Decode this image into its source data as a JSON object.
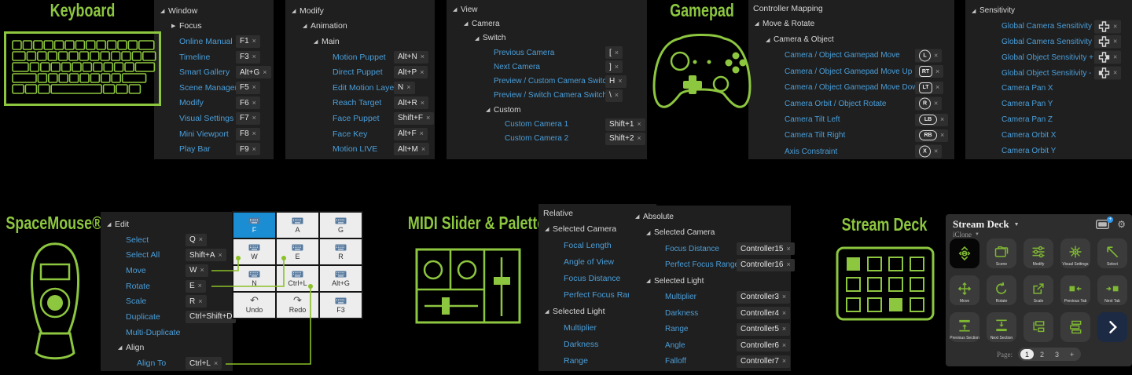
{
  "colors": {
    "green": "#8dc63f",
    "blue": "#4a9ed9",
    "key_active": "#1b8ed3",
    "deck_icon_green": "#7fb832",
    "connector": "#8bc027"
  },
  "titles": {
    "keyboard": "Keyboard",
    "gamepad": "Gamepad",
    "spacemouse": "SpaceMouse®",
    "midi": "MIDI Slider & Palette",
    "streamdeck": "Stream Deck"
  },
  "trees": {
    "window": {
      "rows": [
        {
          "t": "group",
          "label": "Window",
          "indent": 0,
          "open": true
        },
        {
          "t": "group",
          "label": "Focus",
          "indent": 1,
          "open": false
        },
        {
          "t": "item",
          "label": "Online Manual",
          "indent": 1,
          "chip": "F1",
          "x": true
        },
        {
          "t": "item",
          "label": "Timeline",
          "indent": 1,
          "chip": "F3",
          "x": true
        },
        {
          "t": "item",
          "label": "Smart Gallery",
          "indent": 1,
          "chip": "Alt+G",
          "x": true
        },
        {
          "t": "item",
          "label": "Scene Manager",
          "indent": 1,
          "chip": "F5",
          "x": true
        },
        {
          "t": "item",
          "label": "Modify",
          "indent": 1,
          "chip": "F6",
          "x": true
        },
        {
          "t": "item",
          "label": "Visual Settings",
          "indent": 1,
          "chip": "F7",
          "x": true
        },
        {
          "t": "item",
          "label": "Mini Viewport",
          "indent": 1,
          "chip": "F8",
          "x": true
        },
        {
          "t": "item",
          "label": "Play Bar",
          "indent": 1,
          "chip": "F9",
          "x": true
        }
      ]
    },
    "modify": {
      "rows": [
        {
          "t": "group",
          "label": "Modify",
          "indent": 0,
          "open": true
        },
        {
          "t": "group",
          "label": "Animation",
          "indent": 1,
          "open": true
        },
        {
          "t": "group",
          "label": "Main",
          "indent": 2,
          "open": true
        },
        {
          "t": "item",
          "label": "Motion Puppet",
          "indent": 3,
          "chip": "Alt+N",
          "x": true
        },
        {
          "t": "item",
          "label": "Direct Puppet",
          "indent": 3,
          "chip": "Alt+P",
          "x": true
        },
        {
          "t": "item",
          "label": "Edit Motion Layer",
          "indent": 3,
          "chip": "N",
          "x": true
        },
        {
          "t": "item",
          "label": "Reach Target",
          "indent": 3,
          "chip": "Alt+R",
          "x": true
        },
        {
          "t": "item",
          "label": "Face Puppet",
          "indent": 3,
          "chip": "Shift+F",
          "x": true
        },
        {
          "t": "item",
          "label": "Face Key",
          "indent": 3,
          "chip": "Alt+F",
          "x": true
        },
        {
          "t": "item",
          "label": "Motion LIVE",
          "indent": 3,
          "chip": "Alt+M",
          "x": true
        }
      ]
    },
    "view": {
      "rows": [
        {
          "t": "group",
          "label": "View",
          "indent": 0,
          "open": true
        },
        {
          "t": "group",
          "label": "Camera",
          "indent": 1,
          "open": true
        },
        {
          "t": "group",
          "label": "Switch",
          "indent": 2,
          "open": true
        },
        {
          "t": "item",
          "label": "Previous Camera",
          "indent": 3,
          "chip": "[",
          "x": true
        },
        {
          "t": "item",
          "label": "Next Camera",
          "indent": 3,
          "chip": "]",
          "x": true
        },
        {
          "t": "item",
          "label": "Preview / Custom Camera Switch",
          "indent": 3,
          "chip": "H",
          "x": true
        },
        {
          "t": "item",
          "label": "Preview / Switch Camera Switch",
          "indent": 3,
          "chip": "\\",
          "x": true
        },
        {
          "t": "group",
          "label": "Custom",
          "indent": 3,
          "open": true
        },
        {
          "t": "item",
          "label": "Custom Camera 1",
          "indent": 4,
          "chip": "Shift+1",
          "x": true
        },
        {
          "t": "item",
          "label": "Custom Camera 2",
          "indent": 4,
          "chip": "Shift+2",
          "x": true
        }
      ]
    },
    "controller": {
      "header": "Controller Mapping",
      "rows": [
        {
          "t": "group",
          "label": "Move & Rotate",
          "indent": 0,
          "open": true
        },
        {
          "t": "group",
          "label": "Camera & Object",
          "indent": 1,
          "open": true
        },
        {
          "t": "item",
          "label": "Camera / Object Gamepad Move",
          "indent": 2,
          "shape": "circle",
          "chip": "L",
          "x": true
        },
        {
          "t": "item",
          "label": "Camera / Object Gamepad Move Up",
          "indent": 2,
          "shape": "rsquare",
          "chip": "RT",
          "x": true
        },
        {
          "t": "item",
          "label": "Camera / Object Gamepad Move Down",
          "indent": 2,
          "shape": "rsquare",
          "chip": "LT",
          "x": true
        },
        {
          "t": "item",
          "label": "Camera Orbit / Object Rotate",
          "indent": 2,
          "shape": "circle",
          "chip": "R",
          "x": true
        },
        {
          "t": "item",
          "label": "Camera Tilt Left",
          "indent": 2,
          "shape": "pill",
          "chip": "LB",
          "x": true
        },
        {
          "t": "item",
          "label": "Camera Tilt Right",
          "indent": 2,
          "shape": "pill",
          "chip": "RB",
          "x": true
        },
        {
          "t": "item",
          "label": "Axis Constraint",
          "indent": 2,
          "shape": "circle",
          "chip": "X",
          "x": true
        }
      ]
    },
    "sensitivity": {
      "rows": [
        {
          "t": "group",
          "label": "Sensitivity",
          "indent": 0,
          "open": true
        },
        {
          "t": "item",
          "label": "Global Camera Sensitivity +",
          "indent": 2,
          "chipIcon": "dpad",
          "x": true
        },
        {
          "t": "item",
          "label": "Global Camera Sensitivity -",
          "indent": 2,
          "chipIcon": "dpad",
          "x": true
        },
        {
          "t": "item",
          "label": "Global Object Sensitivity +",
          "indent": 2,
          "chipIcon": "dpad-right",
          "x": true
        },
        {
          "t": "item",
          "label": "Global Object Sensitivity -",
          "indent": 2,
          "chipIcon": "dpad-left",
          "x": true
        },
        {
          "t": "item",
          "label": "Camera Pan X",
          "indent": 2
        },
        {
          "t": "item",
          "label": "Camera Pan Y",
          "indent": 2
        },
        {
          "t": "item",
          "label": "Camera Pan Z",
          "indent": 2
        },
        {
          "t": "item",
          "label": "Camera Orbit X",
          "indent": 2
        },
        {
          "t": "item",
          "label": "Camera Orbit Y",
          "indent": 2
        }
      ]
    },
    "edit": {
      "rows": [
        {
          "t": "group",
          "label": "Edit",
          "indent": 0,
          "open": true
        },
        {
          "t": "item",
          "label": "Select",
          "indent": 1,
          "chip": "Q",
          "x": true
        },
        {
          "t": "item",
          "label": "Select All",
          "indent": 1,
          "chip": "Shift+A",
          "x": true
        },
        {
          "t": "item",
          "label": "Move",
          "indent": 1,
          "chip": "W",
          "x": true
        },
        {
          "t": "item",
          "label": "Rotate",
          "indent": 1,
          "chip": "E",
          "x": true
        },
        {
          "t": "item",
          "label": "Scale",
          "indent": 1,
          "chip": "R",
          "x": true
        },
        {
          "t": "item",
          "label": "Duplicate",
          "indent": 1,
          "chip": "Ctrl+Shift+D",
          "x": false
        },
        {
          "t": "item",
          "label": "Multi-Duplicate",
          "indent": 1
        },
        {
          "t": "group",
          "label": "Align",
          "indent": 1,
          "open": true
        },
        {
          "t": "item",
          "label": "Align To",
          "indent": 2,
          "chip": "Ctrl+L",
          "x": true
        }
      ]
    },
    "relative": {
      "header": "Relative",
      "rows": [
        {
          "t": "group",
          "label": "Selected Camera",
          "indent": 0,
          "open": true
        },
        {
          "t": "item",
          "label": "Focal Length",
          "indent": 1
        },
        {
          "t": "item",
          "label": "Angle of View",
          "indent": 1
        },
        {
          "t": "item",
          "label": "Focus Distance",
          "indent": 1
        },
        {
          "t": "item",
          "label": "Perfect Focus Range",
          "indent": 1
        },
        {
          "t": "group",
          "label": "Selected Light",
          "indent": 0,
          "open": true
        },
        {
          "t": "item",
          "label": "Multiplier",
          "indent": 1
        },
        {
          "t": "item",
          "label": "Darkness",
          "indent": 1
        },
        {
          "t": "item",
          "label": "Range",
          "indent": 1
        }
      ]
    },
    "absolute": {
      "rows": [
        {
          "t": "group",
          "label": "Absolute",
          "indent": 0,
          "open": true
        },
        {
          "t": "group",
          "label": "Selected Camera",
          "indent": 1,
          "open": true
        },
        {
          "t": "item",
          "label": "Focus Distance",
          "indent": 2,
          "chip": "Controller15",
          "x": true
        },
        {
          "t": "item",
          "label": "Perfect Focus Range",
          "indent": 2,
          "chip": "Controller16",
          "x": true
        },
        {
          "t": "group",
          "label": "Selected Light",
          "indent": 1,
          "open": true
        },
        {
          "t": "item",
          "label": "Multiplier",
          "indent": 2,
          "chip": "Controller3",
          "x": true
        },
        {
          "t": "item",
          "label": "Darkness",
          "indent": 2,
          "chip": "Controller4",
          "x": true
        },
        {
          "t": "item",
          "label": "Range",
          "indent": 2,
          "chip": "Controller5",
          "x": true
        },
        {
          "t": "item",
          "label": "Angle",
          "indent": 2,
          "chip": "Controller6",
          "x": true
        },
        {
          "t": "item",
          "label": "Falloff",
          "indent": 2,
          "chip": "Controller7",
          "x": true
        }
      ]
    }
  },
  "keygrid": {
    "cells": [
      {
        "icon": "keyboard",
        "label": "F",
        "active": true
      },
      {
        "icon": "keyboard",
        "label": "A"
      },
      {
        "icon": "keyboard",
        "label": "G"
      },
      {
        "icon": "keyboard",
        "label": "W"
      },
      {
        "icon": "keyboard",
        "label": "E"
      },
      {
        "icon": "keyboard",
        "label": "R"
      },
      {
        "icon": "keyboard",
        "label": "N"
      },
      {
        "icon": "keyboard",
        "label": "Ctrl+L"
      },
      {
        "icon": "keyboard",
        "label": "Alt+G"
      },
      {
        "icon": "undo",
        "label": "Undo"
      },
      {
        "icon": "redo",
        "label": "Redo"
      },
      {
        "icon": "keyboard",
        "label": "F3"
      }
    ]
  },
  "streamdeck": {
    "window_title": "Stream Deck",
    "profile": "iClone",
    "header_icons": [
      "device-add-icon",
      "settings-gear-icon"
    ],
    "buttons": [
      {
        "icon": "iclone-logo",
        "label": "",
        "variant": "logo"
      },
      {
        "icon": "folder",
        "label": "Scene"
      },
      {
        "icon": "sliders",
        "label": "Modify"
      },
      {
        "icon": "burst",
        "label": "Visual Settings"
      },
      {
        "icon": "cursor",
        "label": "Select"
      },
      {
        "icon": "move",
        "label": "Move"
      },
      {
        "icon": "rotate",
        "label": "Rotate"
      },
      {
        "icon": "scale",
        "label": "Scale"
      },
      {
        "icon": "prev-tab",
        "label": "Previous Tab"
      },
      {
        "icon": "next-tab",
        "label": "Next Tab"
      },
      {
        "icon": "prev-section",
        "label": "Previous Section"
      },
      {
        "icon": "next-section",
        "label": "Next Section"
      },
      {
        "icon": "layers-indent",
        "label": ""
      },
      {
        "icon": "layers-stack",
        "label": ""
      },
      {
        "icon": "chevron-right",
        "label": "",
        "variant": "nav"
      }
    ],
    "pagination": {
      "label": "Page:",
      "pages": [
        "1",
        "2",
        "3",
        "+"
      ],
      "active": "1"
    }
  }
}
